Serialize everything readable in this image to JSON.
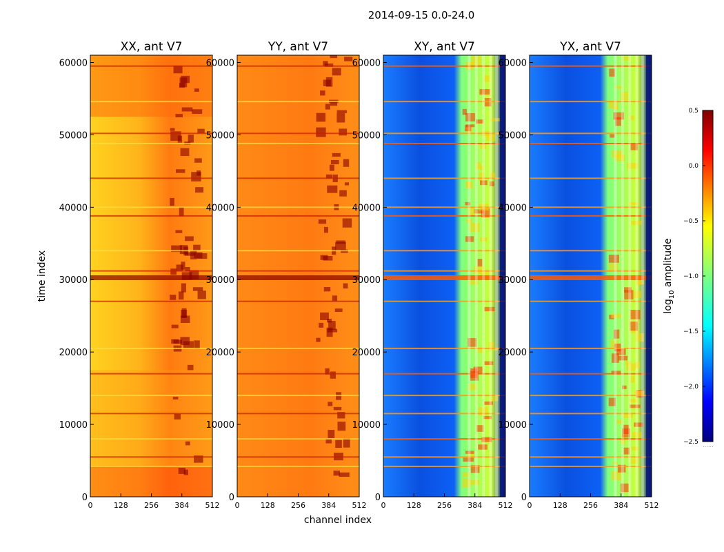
{
  "chart_data": {
    "type": "heatmap",
    "suptitle": "2014-09-15 0.0-24.0",
    "xlabel": "channel index",
    "ylabel": "time index",
    "xlim": [
      0,
      512
    ],
    "ylim": [
      0,
      61000
    ],
    "x_ticks": [
      0,
      128,
      256,
      384,
      512
    ],
    "y_ticks": [
      0,
      10000,
      20000,
      30000,
      40000,
      50000,
      60000
    ],
    "panels": [
      {
        "title": "XX, ant V7",
        "kind": "autocorr",
        "mean_log_amplitude": -0.5
      },
      {
        "title": "YY, ant V7",
        "kind": "autocorr",
        "mean_log_amplitude": -0.2
      },
      {
        "title": "XY, ant V7",
        "kind": "crosscorr",
        "mean_log_amplitude": -1.9
      },
      {
        "title": "YX, ant V7",
        "kind": "crosscorr",
        "mean_log_amplitude": -1.9
      }
    ],
    "colorbar": {
      "label": "log10 amplitude",
      "label_base": "log",
      "label_sub": "10",
      "label_rest": " amplitude",
      "range": [
        -2.5,
        0.5
      ],
      "ticks": [
        "0.5",
        "0.0",
        "−0.5",
        "−1.0",
        "−1.5",
        "−2.0",
        "−2.5"
      ],
      "colormap": "jet",
      "footnote": "......"
    }
  }
}
